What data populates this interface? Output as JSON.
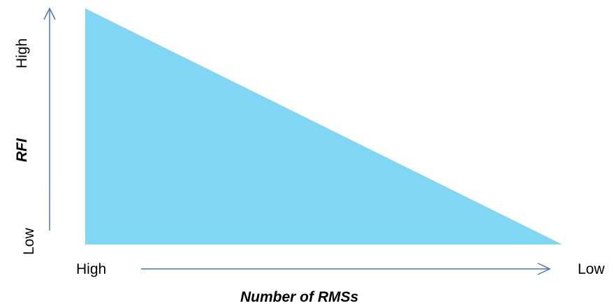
{
  "diagram": {
    "shape": "right-triangle",
    "fill_color": "#7fd6f5",
    "axis_color": "#4a76b8",
    "y_axis": {
      "title": "RFI",
      "high_label": "High",
      "low_label": "Low"
    },
    "x_axis": {
      "title": "Number of RMSs",
      "start_label": "High",
      "end_label": "Low"
    }
  }
}
